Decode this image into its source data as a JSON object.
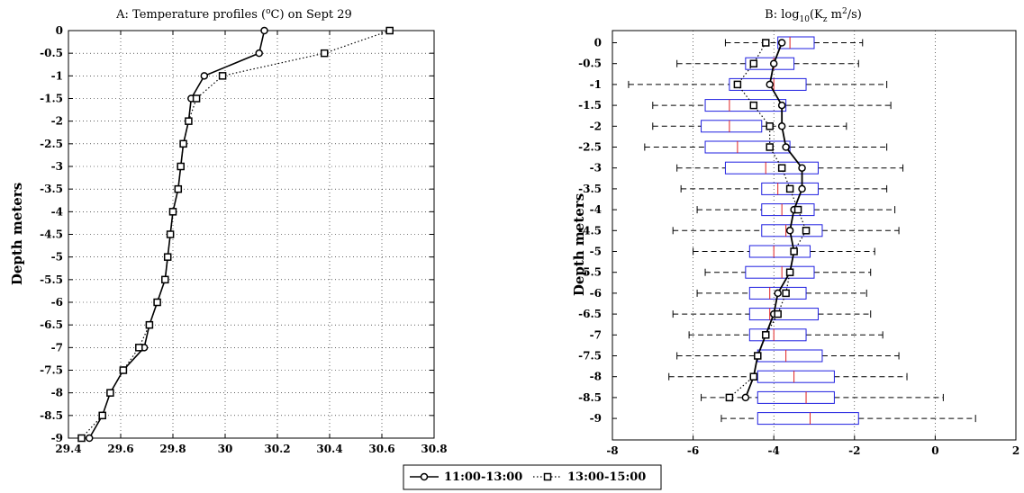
{
  "legend": {
    "entries": [
      {
        "label": "11:00-13:00",
        "style": "solid",
        "marker": "circle"
      },
      {
        "label": "13:00-15:00",
        "style": "dotted",
        "marker": "square"
      }
    ]
  },
  "chart_data": [
    {
      "type": "line",
      "title_prefix": "A: Temperature profiles (",
      "title_sup": "o",
      "title_suffix": "C) on Sept 29",
      "xlabel": "",
      "ylabel": "Depth meters",
      "xlim": [
        29.4,
        30.8
      ],
      "ylim": [
        -9,
        0
      ],
      "xticks": [
        29.4,
        29.6,
        29.8,
        30,
        30.2,
        30.4,
        30.6,
        30.8
      ],
      "xtick_labels": [
        "29.4",
        "29.6",
        "29.8",
        "30",
        "30.2",
        "30.4",
        "30.6",
        "30.8"
      ],
      "yticks": [
        0,
        -0.5,
        -1,
        -1.5,
        -2,
        -2.5,
        -3,
        -3.5,
        -4,
        -4.5,
        -5,
        -5.5,
        -6,
        -6.5,
        -7,
        -7.5,
        -8,
        -8.5,
        -9
      ],
      "ytick_labels": [
        "0",
        "-0.5",
        "-1",
        "-1.5",
        "-2",
        "-2.5",
        "-3",
        "-3.5",
        "-4",
        "-4.5",
        "-5",
        "-5.5",
        "-6",
        "-6.5",
        "-7",
        "-7.5",
        "-8",
        "-8.5",
        "-9"
      ],
      "grid": true,
      "depth": [
        0,
        -0.5,
        -1,
        -1.5,
        -2,
        -2.5,
        -3,
        -3.5,
        -4,
        -4.5,
        -5,
        -5.5,
        -6,
        -6.5,
        -7,
        -7.5,
        -8,
        -8.5,
        -9
      ],
      "series": [
        {
          "name": "11:00-13:00",
          "values": [
            30.15,
            30.13,
            29.92,
            29.87,
            29.86,
            29.84,
            29.83,
            29.82,
            29.8,
            29.79,
            29.78,
            29.77,
            29.74,
            29.71,
            29.69,
            29.61,
            29.56,
            29.53,
            29.48
          ]
        },
        {
          "name": "13:00-15:00",
          "values": [
            30.63,
            30.38,
            29.99,
            29.89,
            29.86,
            29.84,
            29.83,
            29.82,
            29.8,
            29.79,
            29.78,
            29.77,
            29.74,
            29.71,
            29.67,
            29.61,
            29.56,
            29.53,
            29.45
          ]
        }
      ]
    },
    {
      "type": "box",
      "title_prefix": "B: log",
      "title_sub": "10",
      "title_mid": "(K",
      "title_sub2": "z",
      "title_mid2": " m",
      "title_sup": "2",
      "title_suffix": "/s)",
      "xlabel": "",
      "ylabel": "Depth meters",
      "xlim": [
        -8,
        2
      ],
      "xticks": [
        -8,
        -6,
        -4,
        -2,
        0,
        2
      ],
      "xtick_labels": [
        "-8",
        "-6",
        "-4",
        "-2",
        "0",
        "2"
      ],
      "grid": true,
      "categories": [
        "0",
        "-0.5",
        "-1",
        "-1.5",
        "-2",
        "-2.5",
        "-3",
        "-3.5",
        "-4",
        "-4.5",
        "-5",
        "-5.5",
        "-6",
        "-6.5",
        "-7",
        "-7.5",
        "-8",
        "-8.5",
        "-9"
      ],
      "boxes": [
        {
          "wl": -5.2,
          "q1": -3.9,
          "med": -3.6,
          "q3": -3.0,
          "wh": -1.8
        },
        {
          "wl": -6.4,
          "q1": -4.7,
          "med": -4.0,
          "q3": -3.5,
          "wh": -1.9
        },
        {
          "wl": -7.6,
          "q1": -5.1,
          "med": -4.0,
          "q3": -3.2,
          "wh": -1.2
        },
        {
          "wl": -7.0,
          "q1": -5.7,
          "med": -5.1,
          "q3": -3.7,
          "wh": -1.1
        },
        {
          "wl": -7.0,
          "q1": -5.8,
          "med": -5.1,
          "q3": -4.3,
          "wh": -2.2
        },
        {
          "wl": -7.2,
          "q1": -5.7,
          "med": -4.9,
          "q3": -3.6,
          "wh": -1.2
        },
        {
          "wl": -6.4,
          "q1": -5.2,
          "med": -4.2,
          "q3": -2.9,
          "wh": -0.8
        },
        {
          "wl": -6.3,
          "q1": -4.3,
          "med": -3.9,
          "q3": -2.9,
          "wh": -1.2
        },
        {
          "wl": -5.9,
          "q1": -4.3,
          "med": -3.8,
          "q3": -3.0,
          "wh": -1.0
        },
        {
          "wl": -6.5,
          "q1": -4.3,
          "med": -3.7,
          "q3": -2.8,
          "wh": -0.9
        },
        {
          "wl": -6.0,
          "q1": -4.6,
          "med": -4.0,
          "q3": -3.1,
          "wh": -1.5
        },
        {
          "wl": -5.7,
          "q1": -4.7,
          "med": -3.8,
          "q3": -3.0,
          "wh": -1.6
        },
        {
          "wl": -5.9,
          "q1": -4.6,
          "med": -4.1,
          "q3": -3.2,
          "wh": -1.7
        },
        {
          "wl": -6.5,
          "q1": -4.6,
          "med": -4.1,
          "q3": -2.9,
          "wh": -1.6
        },
        {
          "wl": -6.1,
          "q1": -4.6,
          "med": -4.0,
          "q3": -3.2,
          "wh": -1.3
        },
        {
          "wl": -6.4,
          "q1": -4.4,
          "med": -3.7,
          "q3": -2.8,
          "wh": -0.9
        },
        {
          "wl": -6.6,
          "q1": -4.4,
          "med": -3.5,
          "q3": -2.5,
          "wh": -0.7
        },
        {
          "wl": -5.8,
          "q1": -4.4,
          "med": -3.2,
          "q3": -2.5,
          "wh": 0.2
        },
        {
          "wl": -5.3,
          "q1": -4.4,
          "med": -3.1,
          "q3": -1.9,
          "wh": 1.0
        }
      ],
      "series": [
        {
          "name": "11:00-13:00",
          "values": [
            -3.8,
            -4.0,
            -4.1,
            -3.8,
            -3.8,
            -3.7,
            -3.3,
            -3.3,
            -3.5,
            -3.6,
            -3.5,
            -3.6,
            -3.9,
            -4.0,
            -4.2,
            -4.4,
            -4.5,
            -4.7,
            null
          ]
        },
        {
          "name": "13:00-15:00",
          "values": [
            -4.2,
            -4.5,
            -4.9,
            -4.5,
            -4.1,
            -4.1,
            -3.8,
            -3.6,
            -3.4,
            -3.2,
            -3.5,
            -3.6,
            -3.7,
            -3.9,
            -4.2,
            -4.4,
            -4.5,
            -5.1,
            null
          ]
        }
      ]
    }
  ]
}
